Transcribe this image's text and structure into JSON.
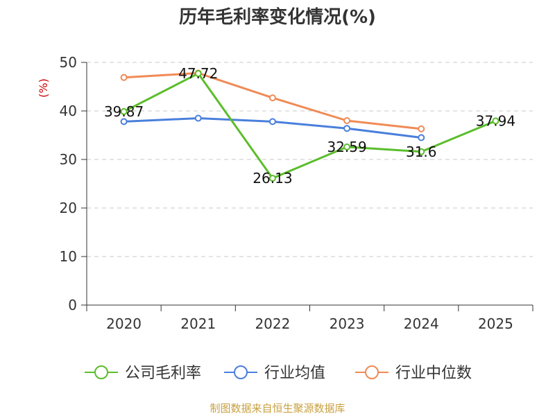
{
  "chart_data": {
    "type": "line",
    "title": "历年毛利率变化情况(%)",
    "ylabel": "(%)",
    "xlabel": "",
    "ylim": [
      0,
      50
    ],
    "yticks": [
      0,
      10,
      20,
      30,
      40,
      50
    ],
    "categories": [
      "2020",
      "2021",
      "2022",
      "2023",
      "2024",
      "2025"
    ],
    "grid": true,
    "legend_position": "bottom",
    "series": [
      {
        "name": "公司毛利率",
        "color": "#5bbd2b",
        "values": [
          39.87,
          47.72,
          26.13,
          32.59,
          31.6,
          37.94
        ],
        "labels": [
          "39.87",
          "47.72",
          "26.13",
          "32.59",
          "31.6",
          "37.94"
        ]
      },
      {
        "name": "行业均值",
        "color": "#4a7fdc",
        "values": [
          37.8,
          38.5,
          37.8,
          36.4,
          34.5,
          null
        ]
      },
      {
        "name": "行业中位数",
        "color": "#f08a55",
        "values": [
          46.9,
          47.8,
          42.7,
          38.0,
          36.3,
          null
        ]
      }
    ]
  },
  "source_text": "制图数据来自恒生聚源数据库"
}
